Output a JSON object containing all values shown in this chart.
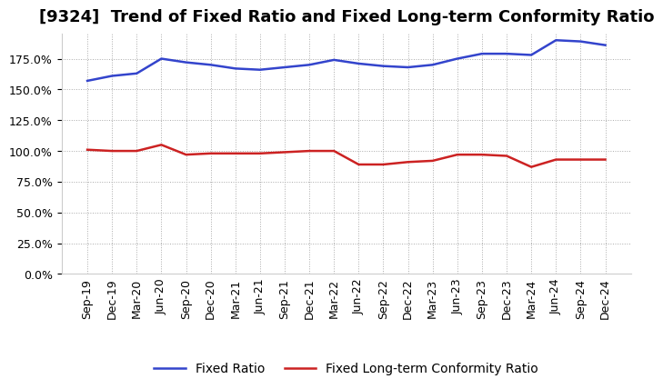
{
  "title": "[9324]  Trend of Fixed Ratio and Fixed Long-term Conformity Ratio",
  "x_labels": [
    "Sep-19",
    "Dec-19",
    "Mar-20",
    "Jun-20",
    "Sep-20",
    "Dec-20",
    "Mar-21",
    "Jun-21",
    "Sep-21",
    "Dec-21",
    "Mar-22",
    "Jun-22",
    "Sep-22",
    "Dec-22",
    "Mar-23",
    "Jun-23",
    "Sep-23",
    "Dec-23",
    "Mar-24",
    "Jun-24",
    "Sep-24",
    "Dec-24"
  ],
  "fixed_ratio": [
    157,
    161,
    163,
    175,
    172,
    170,
    167,
    166,
    168,
    170,
    174,
    171,
    169,
    168,
    170,
    175,
    179,
    179,
    178,
    190,
    189,
    186
  ],
  "fixed_lt_ratio": [
    101,
    100,
    100,
    105,
    97,
    98,
    98,
    98,
    99,
    100,
    100,
    89,
    89,
    91,
    92,
    97,
    97,
    96,
    87,
    93,
    93,
    93
  ],
  "blue_color": "#3344cc",
  "red_color": "#cc2222",
  "bg_color": "#ffffff",
  "plot_bg_color": "#ffffff",
  "grid_color": "#aaaaaa",
  "ylim": [
    0,
    195
  ],
  "yticks": [
    0,
    25,
    50,
    75,
    100,
    125,
    150,
    175
  ],
  "legend_fixed_ratio": "Fixed Ratio",
  "legend_fixed_lt": "Fixed Long-term Conformity Ratio",
  "title_fontsize": 13,
  "axis_fontsize": 9,
  "legend_fontsize": 10,
  "line_width": 1.8
}
